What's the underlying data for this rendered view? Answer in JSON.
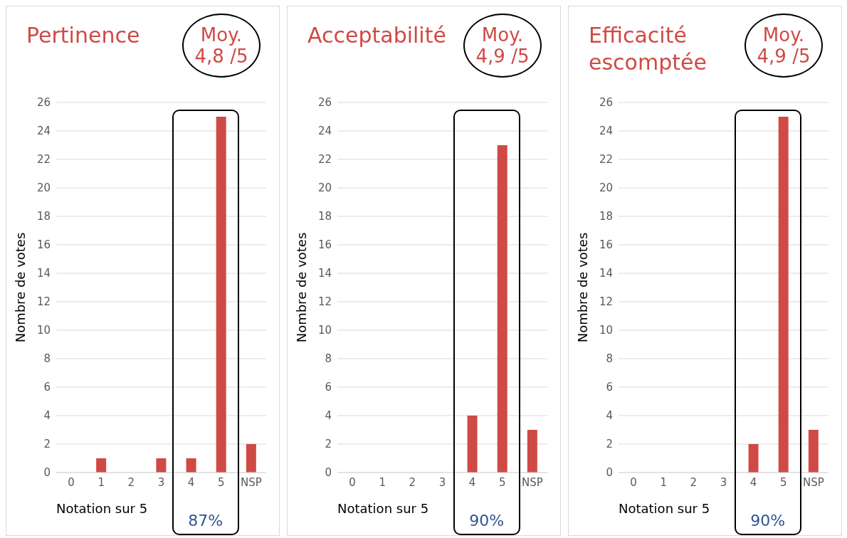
{
  "chart_data": [
    {
      "type": "bar",
      "title": "Pertinence",
      "xlabel": "Notation sur 5",
      "ylabel": "Nombre de votes",
      "categories": [
        "0",
        "1",
        "2",
        "3",
        "4",
        "5",
        "NSP"
      ],
      "values": [
        0,
        1,
        0,
        1,
        1,
        25,
        2
      ],
      "color": "#d04a45",
      "ylim": [
        0,
        26
      ],
      "yticks": [
        0,
        2,
        4,
        6,
        8,
        10,
        12,
        14,
        16,
        18,
        20,
        22,
        24,
        26
      ],
      "grid": "y",
      "annotations": [
        "Moy. 4,8 /5",
        "87%"
      ]
    },
    {
      "type": "bar",
      "title": "Acceptabilité",
      "xlabel": "Notation sur 5",
      "ylabel": "Nombre de votes",
      "categories": [
        "0",
        "1",
        "2",
        "3",
        "4",
        "5",
        "NSP"
      ],
      "values": [
        0,
        0,
        0,
        0,
        4,
        23,
        3
      ],
      "color": "#d04a45",
      "ylim": [
        0,
        26
      ],
      "yticks": [
        0,
        2,
        4,
        6,
        8,
        10,
        12,
        14,
        16,
        18,
        20,
        22,
        24,
        26
      ],
      "grid": "y",
      "annotations": [
        "Moy. 4,9 /5",
        "90%"
      ]
    },
    {
      "type": "bar",
      "title": "Efficacité escomptée",
      "xlabel": "Notation sur 5",
      "ylabel": "Nombre de votes",
      "categories": [
        "0",
        "1",
        "2",
        "3",
        "4",
        "5",
        "NSP"
      ],
      "values": [
        0,
        0,
        0,
        0,
        2,
        25,
        3
      ],
      "color": "#d04a45",
      "ylim": [
        0,
        26
      ],
      "yticks": [
        0,
        2,
        4,
        6,
        8,
        10,
        12,
        14,
        16,
        18,
        20,
        22,
        24,
        26
      ],
      "grid": "y",
      "annotations": [
        "Moy. 4,9 /5",
        "90%"
      ]
    }
  ]
}
